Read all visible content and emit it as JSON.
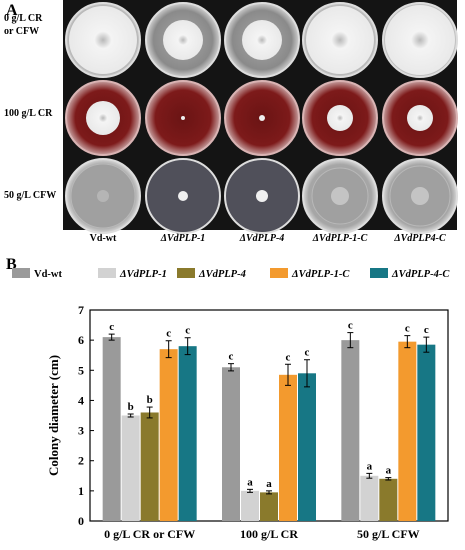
{
  "panel_a": {
    "letter": "A",
    "row_labels": [
      "0 g/L CR\nor CFW",
      "100 g/L CR",
      "50 g/L CFW"
    ],
    "column_labels": [
      "Vd-wt",
      "ΔVdPLP-1",
      "ΔVdPLP-4",
      "ΔVdPLP-1-C",
      "ΔVdPLP4-C"
    ]
  },
  "panel_b": {
    "letter": "B"
  },
  "colors": {
    "Vd-wt": "#9a9a9a",
    "ΔVdPLP-1": "#d2d2d2",
    "ΔVdPLP-4": "#8a7a2c",
    "ΔVdPLP-1-C": "#f39a2e",
    "ΔVdPLP-4-C": "#177785"
  },
  "chart_data": {
    "type": "bar",
    "categories": [
      "0 g/L CR or CFW",
      "100 g/L CR",
      "50 g/L CFW"
    ],
    "ylabel": "Colony diameter (cm)",
    "ylim": [
      0,
      7
    ],
    "yticks": [
      "0",
      "1",
      "2",
      "3",
      "4",
      "5",
      "6",
      "7"
    ],
    "legend_position": "top",
    "series": [
      {
        "name": "Vd-wt",
        "values": [
          6.1,
          5.1,
          6.0
        ],
        "errors": [
          0.1,
          0.12,
          0.25
        ],
        "labels": [
          "c",
          "c",
          "c"
        ]
      },
      {
        "name": "ΔVdPLP-1",
        "values": [
          3.5,
          1.0,
          1.5
        ],
        "errors": [
          0.05,
          0.05,
          0.08
        ],
        "labels": [
          "b",
          "a",
          "a"
        ]
      },
      {
        "name": "ΔVdPLP-4",
        "values": [
          3.6,
          0.95,
          1.4
        ],
        "errors": [
          0.18,
          0.05,
          0.04
        ],
        "labels": [
          "b",
          "a",
          "a"
        ]
      },
      {
        "name": "ΔVdPLP-1-C",
        "values": [
          5.7,
          4.85,
          5.95
        ],
        "errors": [
          0.28,
          0.35,
          0.2
        ],
        "labels": [
          "c",
          "c",
          "c"
        ]
      },
      {
        "name": "ΔVdPLP-4-C",
        "values": [
          5.8,
          4.9,
          5.85
        ],
        "errors": [
          0.28,
          0.45,
          0.25
        ],
        "labels": [
          "c",
          "c",
          "c"
        ]
      }
    ]
  }
}
